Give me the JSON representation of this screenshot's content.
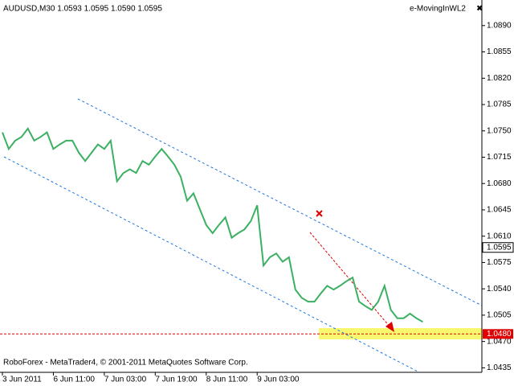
{
  "chart_data": {
    "type": "line",
    "title": "AUDUSD,M30  1.0593 1.0595 1.0590 1.0595",
    "indicator": "e-MovingInWL2",
    "footer": "RoboForex - MetaTrader4, © 2001-2011 MetaQuotes Software Corp.",
    "categories": [
      "3 Jun 2011",
      null,
      null,
      null,
      null,
      null,
      null,
      null,
      "6 Jun 11:00",
      null,
      null,
      null,
      null,
      null,
      null,
      null,
      "7 Jun 03:00",
      null,
      null,
      null,
      null,
      null,
      null,
      null,
      "7 Jun 19:00",
      null,
      null,
      null,
      null,
      null,
      null,
      null,
      "8 Jun 11:00",
      null,
      null,
      null,
      null,
      null,
      null,
      null,
      "9 Jun 03:00",
      null,
      null,
      null,
      null,
      null,
      null,
      null,
      null,
      null,
      null,
      null,
      null,
      null,
      null,
      null,
      null,
      null,
      null,
      null,
      null,
      null,
      null,
      null,
      null,
      null,
      null
    ],
    "series": [
      {
        "color": "#3cb062",
        "values": [
          1.0748,
          1.0726,
          1.0737,
          1.0742,
          1.0753,
          1.0737,
          1.0742,
          1.0748,
          1.0726,
          1.0732,
          1.0737,
          1.0737,
          1.0721,
          1.071,
          1.0721,
          1.0732,
          1.0726,
          1.0737,
          1.0683,
          1.0694,
          1.0699,
          1.0694,
          1.071,
          1.0705,
          1.0716,
          1.0726,
          1.0716,
          1.0705,
          1.0689,
          1.0657,
          1.0667,
          1.0646,
          1.0625,
          1.0614,
          1.0625,
          1.0635,
          1.0608,
          1.0614,
          1.0619,
          1.063,
          1.0651,
          1.0571,
          1.0582,
          1.0587,
          1.0576,
          1.0582,
          1.0539,
          1.0528,
          1.0523,
          1.0523,
          1.0534,
          1.0544,
          1.0539,
          1.0544,
          1.055,
          1.0555,
          1.0523,
          1.0517,
          1.0512,
          1.0523,
          1.0544,
          1.0512,
          1.0501,
          1.0501,
          1.0507,
          1.0501,
          1.0496
        ]
      }
    ],
    "ylim": [
      1.0429,
      1.0924
    ],
    "yticks": [
      {
        "value": 1.0435,
        "label": "1.0435"
      },
      {
        "value": 1.047,
        "label": "1.0470"
      },
      {
        "value": 1.0505,
        "label": "1.0505"
      },
      {
        "value": 1.054,
        "label": "1.0540"
      },
      {
        "value": 1.0575,
        "label": "1.0575"
      },
      {
        "value": 1.061,
        "label": "1.0610"
      },
      {
        "value": 1.0645,
        "label": "1.0645"
      },
      {
        "value": 1.068,
        "label": "1.0680"
      },
      {
        "value": 1.0715,
        "label": "1.0715"
      },
      {
        "value": 1.075,
        "label": "1.0750"
      },
      {
        "value": 1.0785,
        "label": "1.0785"
      },
      {
        "value": 1.082,
        "label": "1.0820"
      },
      {
        "value": 1.0855,
        "label": "1.0855"
      },
      {
        "value": 1.089,
        "label": "1.0890"
      }
    ],
    "current_price": {
      "value": 1.0595,
      "label": "1.0595"
    },
    "target_level": {
      "value": 1.048,
      "label": "1.0480",
      "color": "#e00000"
    }
  }
}
